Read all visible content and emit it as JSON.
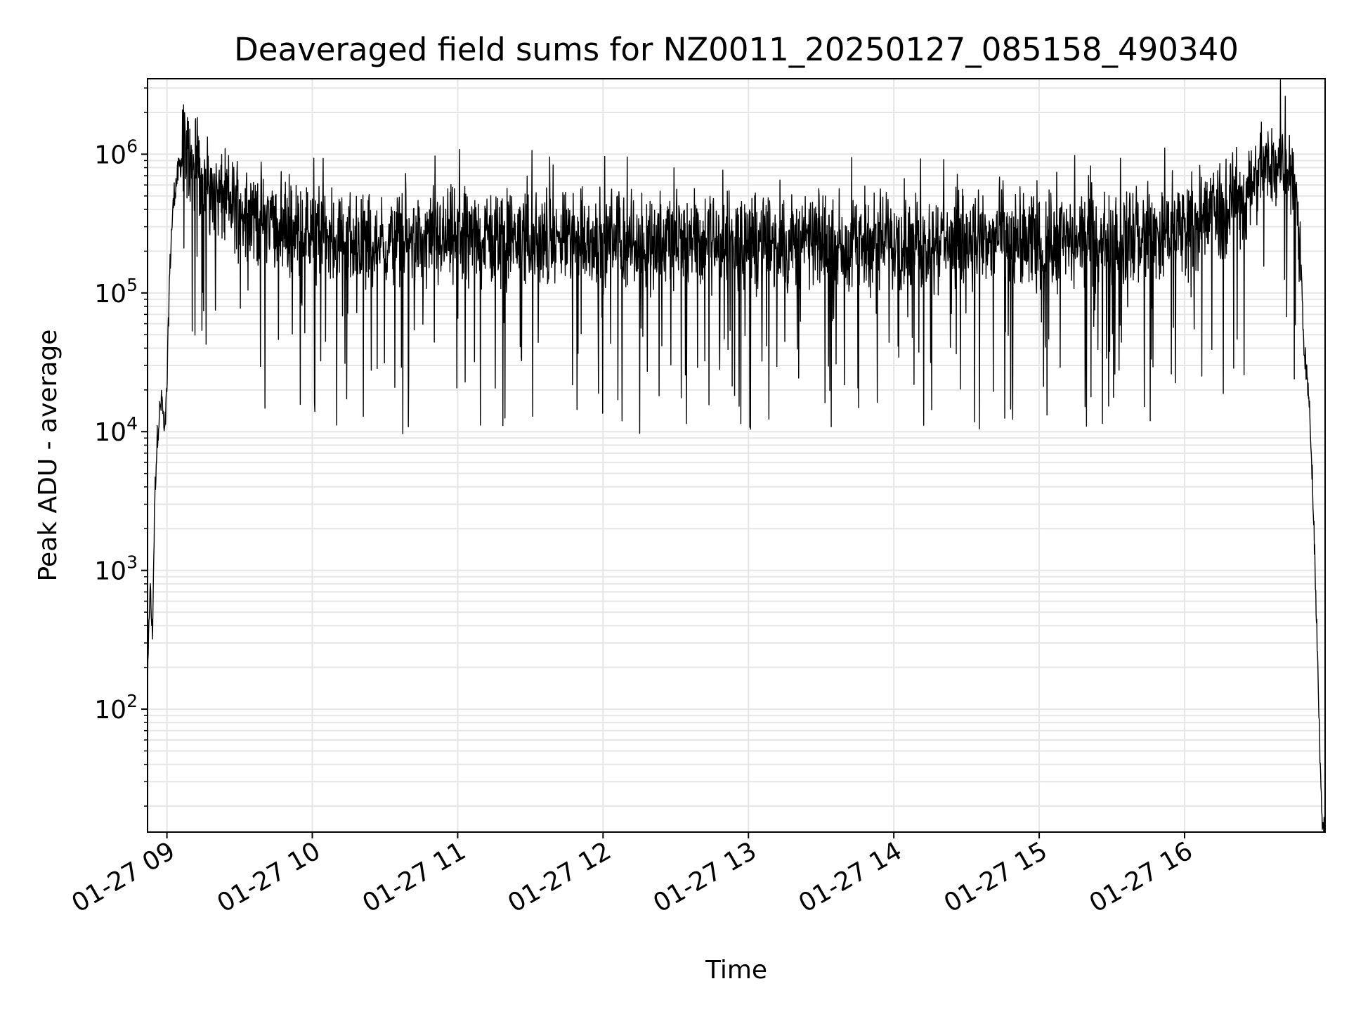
{
  "chart_data": {
    "type": "line",
    "title": "Deaveraged field sums for NZ0011_20250127_085158_490340",
    "xlabel": "Time",
    "ylabel": "Peak ADU - average",
    "yscale": "log",
    "grid": true,
    "grid_minor": true,
    "line_color": "#000000",
    "grid_color": "#e6e6e6",
    "xlim": [
      "2025-01-27 08:52",
      "2025-01-27 16:58"
    ],
    "ylim": [
      13,
      3500000
    ],
    "x_ticks": [
      "01-27 09",
      "01-27 10",
      "01-27 11",
      "01-27 12",
      "01-27 13",
      "01-27 14",
      "01-27 15",
      "01-27 16"
    ],
    "y_ticks": [
      {
        "base": "10",
        "exp": "2",
        "value": 100
      },
      {
        "base": "10",
        "exp": "3",
        "value": 1000
      },
      {
        "base": "10",
        "exp": "4",
        "value": 10000
      },
      {
        "base": "10",
        "exp": "5",
        "value": 100000
      },
      {
        "base": "10",
        "exp": "6",
        "value": 1000000
      }
    ],
    "series": [
      {
        "points": [
          [
            "2025-01-27 08:52",
            140
          ],
          [
            "2025-01-27 08:53",
            800
          ],
          [
            "2025-01-27 08:54",
            330
          ],
          [
            "2025-01-27 08:55",
            3500
          ],
          [
            "2025-01-27 08:56",
            9000
          ],
          [
            "2025-01-27 08:57",
            14000
          ],
          [
            "2025-01-27 08:58",
            17000
          ],
          [
            "2025-01-27 08:59",
            9000
          ],
          [
            "2025-01-27 09:00",
            20000
          ],
          [
            "2025-01-27 09:01",
            120000
          ],
          [
            "2025-01-27 09:02",
            300000
          ],
          [
            "2025-01-27 09:03",
            520000
          ],
          [
            "2025-01-27 09:05",
            800000
          ],
          [
            "2025-01-27 09:07",
            950000
          ],
          [
            "2025-01-27 09:10",
            900000
          ],
          [
            "2025-01-27 09:15",
            700000
          ],
          [
            "2025-01-27 09:20",
            500000
          ],
          [
            "2025-01-27 09:30",
            420000
          ],
          [
            "2025-01-27 09:45",
            320000
          ],
          [
            "2025-01-27 10:00",
            260000
          ],
          [
            "2025-01-27 10:30",
            230000
          ],
          [
            "2025-01-27 11:00",
            250000
          ],
          [
            "2025-01-27 12:00",
            240000
          ],
          [
            "2025-01-27 13:00",
            230000
          ],
          [
            "2025-01-27 14:00",
            240000
          ],
          [
            "2025-01-27 15:00",
            230000
          ],
          [
            "2025-01-27 15:50",
            260000
          ],
          [
            "2025-01-27 16:05",
            320000
          ],
          [
            "2025-01-27 16:15",
            380000
          ],
          [
            "2025-01-27 16:25",
            520000
          ],
          [
            "2025-01-27 16:33",
            800000
          ],
          [
            "2025-01-27 16:40",
            950000
          ],
          [
            "2025-01-27 16:44",
            800000
          ],
          [
            "2025-01-27 16:46",
            500000
          ],
          [
            "2025-01-27 16:48",
            180000
          ],
          [
            "2025-01-27 16:49",
            50000
          ],
          [
            "2025-01-27 16:50",
            30000
          ],
          [
            "2025-01-27 16:51",
            20000
          ],
          [
            "2025-01-27 16:52",
            10000
          ],
          [
            "2025-01-27 16:53",
            3500
          ],
          [
            "2025-01-27 16:54",
            900
          ],
          [
            "2025-01-27 16:55",
            200
          ],
          [
            "2025-01-27 16:56",
            40
          ],
          [
            "2025-01-27 16:57",
            14
          ]
        ]
      }
    ]
  }
}
